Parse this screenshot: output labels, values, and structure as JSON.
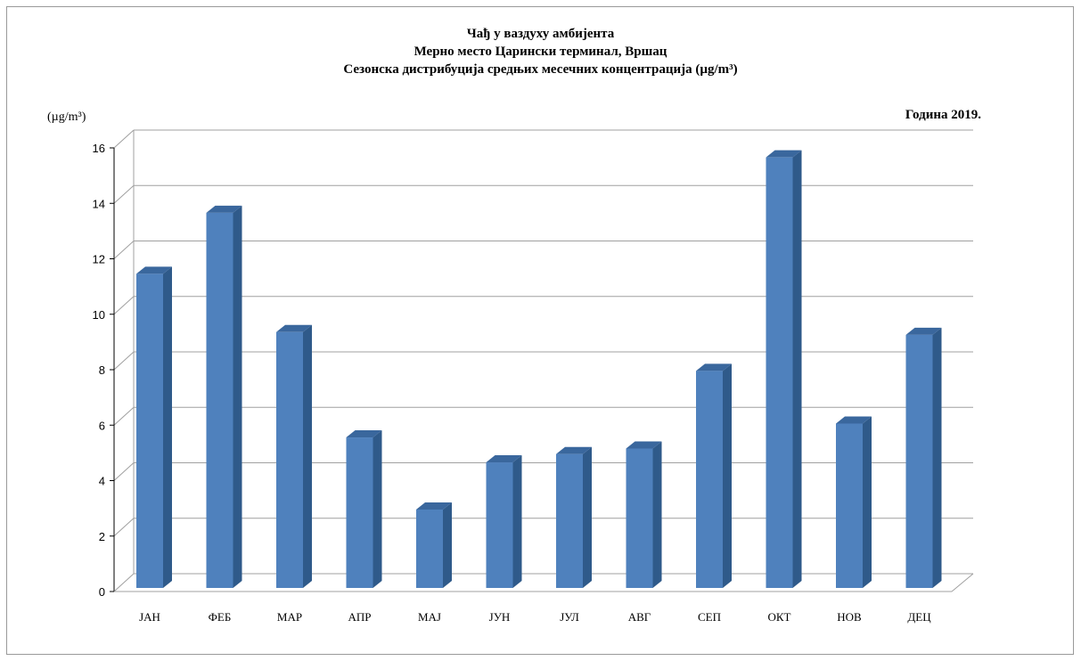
{
  "chart_data": {
    "type": "bar",
    "title_lines": [
      "Чађ у ваздуху амбијента",
      "Мерно место Царински терминал, Вршац",
      "Сезонска дистрибуција средњих месечних концентрација (µg/m³)"
    ],
    "ylabel": "(µg/m³)",
    "year_label": "Година 2019.",
    "categories": [
      "ЈАН",
      "ФЕБ",
      "МАР",
      "АПР",
      "МАЈ",
      "ЈУН",
      "ЈУЛ",
      "АВГ",
      "СЕП",
      "ОКТ",
      "НОВ",
      "ДЕЦ"
    ],
    "values": [
      11.2,
      13.4,
      9.1,
      5.3,
      2.7,
      4.4,
      4.7,
      4.9,
      7.7,
      15.4,
      5.8,
      9.0
    ],
    "ylim": [
      0,
      16
    ],
    "yticks": [
      0,
      2,
      4,
      6,
      8,
      10,
      12,
      14,
      16
    ],
    "grid": true,
    "colors": {
      "bar_front": "#4f81bd",
      "bar_side": "#2f5a8a",
      "bar_top": "#3a679d",
      "grid": "#a0a0a0"
    }
  }
}
